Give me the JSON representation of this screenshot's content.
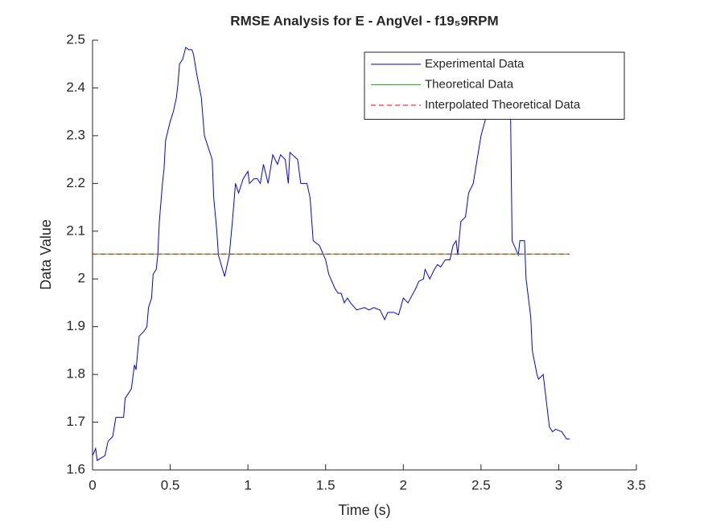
{
  "chart_data": {
    "type": "line",
    "title": "RMSE Analysis for E - AngVel - f19₅9RPM",
    "x_label": "Time (s)",
    "y_label": "Data Value",
    "xlim": [
      0,
      3.5
    ],
    "xticks": [
      0,
      0.5,
      1,
      1.5,
      2,
      2.5,
      3,
      3.5
    ],
    "ylim": [
      1.6,
      2.5
    ],
    "yticks": [
      1.6,
      1.7,
      1.8,
      1.9,
      2,
      2.1,
      2.2,
      2.3,
      2.4,
      2.5
    ],
    "legend": "top-right",
    "series": [
      {
        "name": "Experimental Data",
        "color": "#0000ff",
        "dash": false,
        "x": [
          0,
          0.02,
          0.03,
          0.08,
          0.1,
          0.13,
          0.15,
          0.2,
          0.21,
          0.25,
          0.27,
          0.28,
          0.3,
          0.33,
          0.35,
          0.36,
          0.38,
          0.39,
          0.41,
          0.42,
          0.43,
          0.45,
          0.46,
          0.47,
          0.5,
          0.52,
          0.54,
          0.55,
          0.56,
          0.58,
          0.6,
          0.62,
          0.64,
          0.65,
          0.67,
          0.7,
          0.72,
          0.75,
          0.77,
          0.78,
          0.8,
          0.81,
          0.85,
          0.88,
          0.9,
          0.92,
          0.94,
          0.97,
          1.0,
          1.01,
          1.04,
          1.06,
          1.08,
          1.1,
          1.13,
          1.16,
          1.19,
          1.21,
          1.24,
          1.26,
          1.27,
          1.32,
          1.34,
          1.38,
          1.4,
          1.42,
          1.46,
          1.5,
          1.52,
          1.56,
          1.58,
          1.6,
          1.62,
          1.64,
          1.66,
          1.7,
          1.75,
          1.78,
          1.81,
          1.85,
          1.88,
          1.9,
          1.94,
          1.97,
          2.0,
          2.03,
          2.08,
          2.1,
          2.13,
          2.14,
          2.17,
          2.2,
          2.22,
          2.24,
          2.27,
          2.3,
          2.32,
          2.34,
          2.35,
          2.37,
          2.4,
          2.42,
          2.45,
          2.47,
          2.5,
          2.55,
          2.6,
          2.62,
          2.64,
          2.66,
          2.69,
          2.7,
          2.74,
          2.75,
          2.78,
          2.79,
          2.82,
          2.83,
          2.86,
          2.87,
          2.9,
          2.94,
          2.96,
          2.98,
          3.02,
          3.05,
          3.07
        ],
        "values": [
          1.63,
          1.645,
          1.62,
          1.63,
          1.66,
          1.67,
          1.71,
          1.71,
          1.75,
          1.77,
          1.82,
          1.81,
          1.88,
          1.89,
          1.9,
          1.94,
          1.96,
          2.01,
          2.02,
          2.05,
          2.12,
          2.2,
          2.23,
          2.29,
          2.33,
          2.35,
          2.38,
          2.41,
          2.45,
          2.46,
          2.485,
          2.48,
          2.48,
          2.47,
          2.43,
          2.38,
          2.3,
          2.27,
          2.25,
          2.17,
          2.1,
          2.05,
          2.005,
          2.05,
          2.12,
          2.2,
          2.18,
          2.21,
          2.225,
          2.2,
          2.21,
          2.21,
          2.2,
          2.24,
          2.2,
          2.26,
          2.24,
          2.26,
          2.25,
          2.2,
          2.265,
          2.25,
          2.2,
          2.2,
          2.17,
          2.08,
          2.07,
          2.04,
          2.01,
          1.98,
          1.97,
          1.97,
          1.95,
          1.96,
          1.95,
          1.935,
          1.94,
          1.935,
          1.94,
          1.935,
          1.915,
          1.93,
          1.93,
          1.925,
          1.96,
          1.95,
          1.98,
          1.995,
          2.0,
          2.02,
          2.0,
          2.02,
          2.03,
          2.025,
          2.04,
          2.04,
          2.07,
          2.08,
          2.05,
          2.12,
          2.13,
          2.18,
          2.2,
          2.24,
          2.3,
          2.36,
          2.44,
          2.46,
          2.45,
          2.38,
          2.35,
          2.08,
          2.05,
          2.08,
          2.08,
          2.0,
          1.92,
          1.85,
          1.8,
          1.79,
          1.8,
          1.69,
          1.68,
          1.685,
          1.68,
          1.665,
          1.665
        ]
      },
      {
        "name": "Theoretical Data",
        "color": "#00cc00",
        "dash": false,
        "x": [
          0,
          3.07
        ],
        "values": [
          2.052,
          2.052
        ]
      },
      {
        "name": "Interpolated Theoretical Data",
        "color": "#ff0000",
        "dash": true,
        "x": [
          0,
          3.07
        ],
        "values": [
          2.052,
          2.052
        ]
      }
    ]
  }
}
